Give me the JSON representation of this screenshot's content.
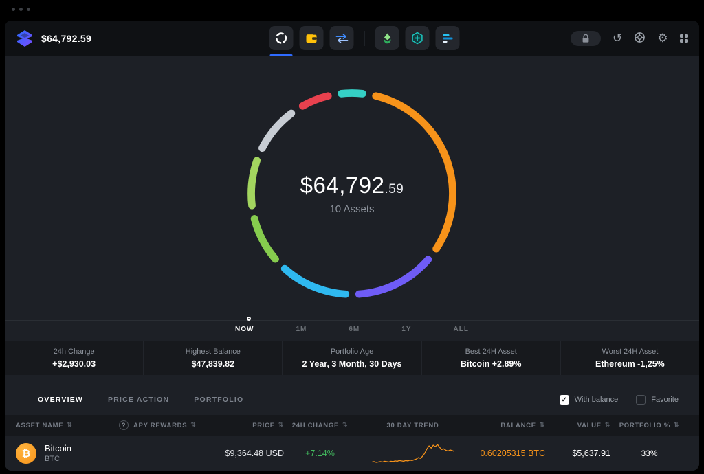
{
  "colors": {
    "accent": "#2f6bff",
    "positive": "#42b95e",
    "bitcoin": "#f7931a",
    "bg_main": "#1d2026",
    "bg_header": "#0f1114"
  },
  "icons": {
    "sort": "⇅",
    "question": "?",
    "btc": "₿",
    "check": "✓",
    "gear": "⚙",
    "history": "↺"
  },
  "header": {
    "balance": "$64,792.59"
  },
  "nav_icons": [
    {
      "name": "portfolio-donut-icon",
      "active": true
    },
    {
      "name": "wallet-icon"
    },
    {
      "name": "swap-icon"
    },
    {
      "name": "staking-icon"
    },
    {
      "name": "buy-crypto-icon"
    },
    {
      "name": "markets-icon"
    }
  ],
  "donut": {
    "value_main": "$64,792",
    "value_cents": ".59",
    "assets_label": "10 Assets",
    "gap": 2.2,
    "segments": [
      {
        "name": "teal",
        "color": "#35d0c5",
        "pct": 3.5
      },
      {
        "name": "orange",
        "color": "#f7931a",
        "pct": 31.5
      },
      {
        "name": "violet",
        "color": "#6f5cf6",
        "pct": 13
      },
      {
        "name": "light-blue",
        "color": "#2fb9f0",
        "pct": 11
      },
      {
        "name": "green-lime",
        "color": "#86cc4e",
        "pct": 7.5
      },
      {
        "name": "green",
        "color": "#a3d55f",
        "pct": 7.5
      },
      {
        "name": "silver",
        "color": "#c7ccd3",
        "pct": 7.5
      },
      {
        "name": "red",
        "color": "#e8414e",
        "pct": 4.5
      }
    ]
  },
  "timeline": {
    "items": [
      "NOW",
      "1M",
      "6M",
      "1Y",
      "ALL"
    ],
    "active": "NOW"
  },
  "stats": [
    {
      "label": "24h Change",
      "value": "+$2,930.03"
    },
    {
      "label": "Highest Balance",
      "value": "$47,839.82"
    },
    {
      "label": "Portfolio Age",
      "value": "2 Year, 3 Month, 30 Days"
    },
    {
      "label": "Best 24H Asset",
      "value": "Bitcoin +2.89%"
    },
    {
      "label": "Worst 24H Asset",
      "value": "Ethereum -1,25%"
    }
  ],
  "tabs": [
    {
      "label": "OVERVIEW",
      "active": true
    },
    {
      "label": "PRICE ACTION",
      "active": false
    },
    {
      "label": "PORTFOLIO",
      "active": false
    }
  ],
  "filters": [
    {
      "label": "With balance",
      "checked": true
    },
    {
      "label": "Favorite",
      "checked": false
    }
  ],
  "table": {
    "columns": [
      {
        "label": "ASSET NAME",
        "sortable": true
      },
      {
        "label": "APY REWARDS",
        "sortable": true
      },
      {
        "label": "PRICE",
        "sortable": true
      },
      {
        "label": "24H CHANGE",
        "sortable": true
      },
      {
        "label": "30 DAY TREND",
        "sortable": false
      },
      {
        "label": "BALANCE",
        "sortable": true
      },
      {
        "label": "VALUE",
        "sortable": true
      },
      {
        "label": "PORTFOLIO %",
        "sortable": true
      }
    ],
    "rows": [
      {
        "name": "Bitcoin",
        "symbol": "BTC",
        "price": "$9,364.48 USD",
        "change": "+7.14%",
        "change_positive": true,
        "balance": "0.60205315 BTC",
        "value": "$5,637.91",
        "portfolio_pct": "33%",
        "trend": [
          12,
          13,
          11,
          12,
          13,
          12,
          14,
          13,
          12,
          14,
          13,
          15,
          14,
          16,
          15,
          14,
          16,
          15,
          17,
          16,
          18,
          20,
          24,
          22,
          28,
          36,
          48,
          56,
          50,
          58,
          54,
          60,
          52,
          46,
          48,
          44,
          42,
          45,
          43,
          41
        ]
      }
    ]
  },
  "chart_data": [
    {
      "type": "pie",
      "title": "Portfolio allocation donut (clockwise from top)",
      "labels": [
        "teal",
        "orange",
        "violet",
        "light-blue",
        "green-lime",
        "green",
        "silver",
        "red"
      ],
      "values": [
        3.5,
        31.5,
        13,
        11,
        7.5,
        7.5,
        7.5,
        4.5
      ],
      "center_label": "$64,792.59 — 10 Assets"
    },
    {
      "type": "line",
      "title": "BTC 30 day trend sparkline",
      "values": [
        12,
        13,
        11,
        12,
        13,
        12,
        14,
        13,
        12,
        14,
        13,
        15,
        14,
        16,
        15,
        14,
        16,
        15,
        17,
        16,
        18,
        20,
        24,
        22,
        28,
        36,
        48,
        56,
        50,
        58,
        54,
        60,
        52,
        46,
        48,
        44,
        42,
        45,
        43,
        41
      ]
    }
  ]
}
